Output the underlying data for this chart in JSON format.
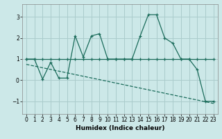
{
  "title": "",
  "xlabel": "Humidex (Indice chaleur)",
  "background_color": "#cce8e8",
  "line_color": "#1a6b5a",
  "grid_color": "#aacccc",
  "xlim": [
    -0.5,
    23.5
  ],
  "ylim": [
    -1.6,
    3.6
  ],
  "yticks": [
    -1,
    0,
    1,
    2,
    3
  ],
  "xticks": [
    0,
    1,
    2,
    3,
    4,
    5,
    6,
    7,
    8,
    9,
    10,
    11,
    12,
    13,
    14,
    15,
    16,
    17,
    18,
    19,
    20,
    21,
    22,
    23
  ],
  "curve1_x": [
    0,
    1,
    2,
    3,
    4,
    5,
    6,
    7,
    8,
    9,
    10,
    11,
    12,
    13,
    14,
    15,
    16,
    17,
    18,
    19,
    20,
    21,
    22,
    23
  ],
  "curve1_y": [
    1.0,
    1.0,
    1.0,
    1.0,
    1.0,
    1.0,
    1.0,
    1.0,
    1.0,
    1.0,
    1.0,
    1.0,
    1.0,
    1.0,
    1.0,
    1.0,
    1.0,
    1.0,
    1.0,
    1.0,
    1.0,
    1.0,
    1.0,
    1.0
  ],
  "curve2_x": [
    0,
    1,
    2,
    3,
    4,
    5,
    6,
    7,
    8,
    9,
    10,
    11,
    12,
    13,
    14,
    15,
    16,
    17,
    18,
    19,
    20,
    21,
    22,
    23
  ],
  "curve2_y": [
    1.0,
    1.0,
    0.05,
    0.85,
    0.1,
    0.1,
    2.1,
    1.1,
    2.1,
    2.2,
    1.0,
    1.0,
    1.0,
    1.0,
    2.1,
    3.1,
    3.1,
    2.0,
    1.75,
    1.0,
    1.0,
    0.5,
    -1.0,
    -1.0
  ],
  "trend_x": [
    0,
    23
  ],
  "trend_y": [
    0.75,
    -1.1
  ]
}
